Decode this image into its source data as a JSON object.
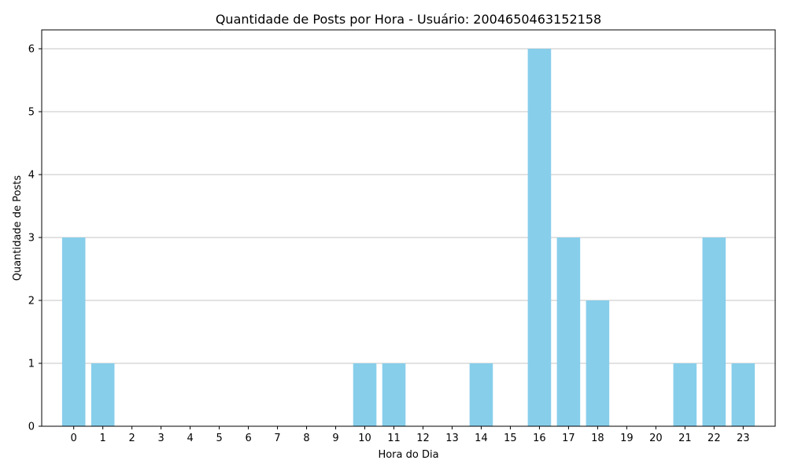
{
  "chart_data": {
    "type": "bar",
    "title": "Quantidade de Posts por Hora - Usuário: 2004650463152158",
    "xlabel": "Hora do Dia",
    "ylabel": "Quantidade de Posts",
    "categories": [
      "0",
      "1",
      "2",
      "3",
      "4",
      "5",
      "6",
      "7",
      "8",
      "9",
      "10",
      "11",
      "12",
      "13",
      "14",
      "15",
      "16",
      "17",
      "18",
      "19",
      "20",
      "21",
      "22",
      "23"
    ],
    "values": [
      3,
      1,
      0,
      0,
      0,
      0,
      0,
      0,
      0,
      0,
      1,
      1,
      0,
      0,
      1,
      0,
      6,
      3,
      2,
      0,
      0,
      1,
      3,
      1
    ],
    "yticks": [
      "0",
      "1",
      "2",
      "3",
      "4",
      "5",
      "6"
    ],
    "ylim": [
      0,
      6.3
    ],
    "grid": "y-axis",
    "bar_color": "#87ceeb",
    "grid_color": "#b0b0b0",
    "axis_color": "#000000"
  }
}
